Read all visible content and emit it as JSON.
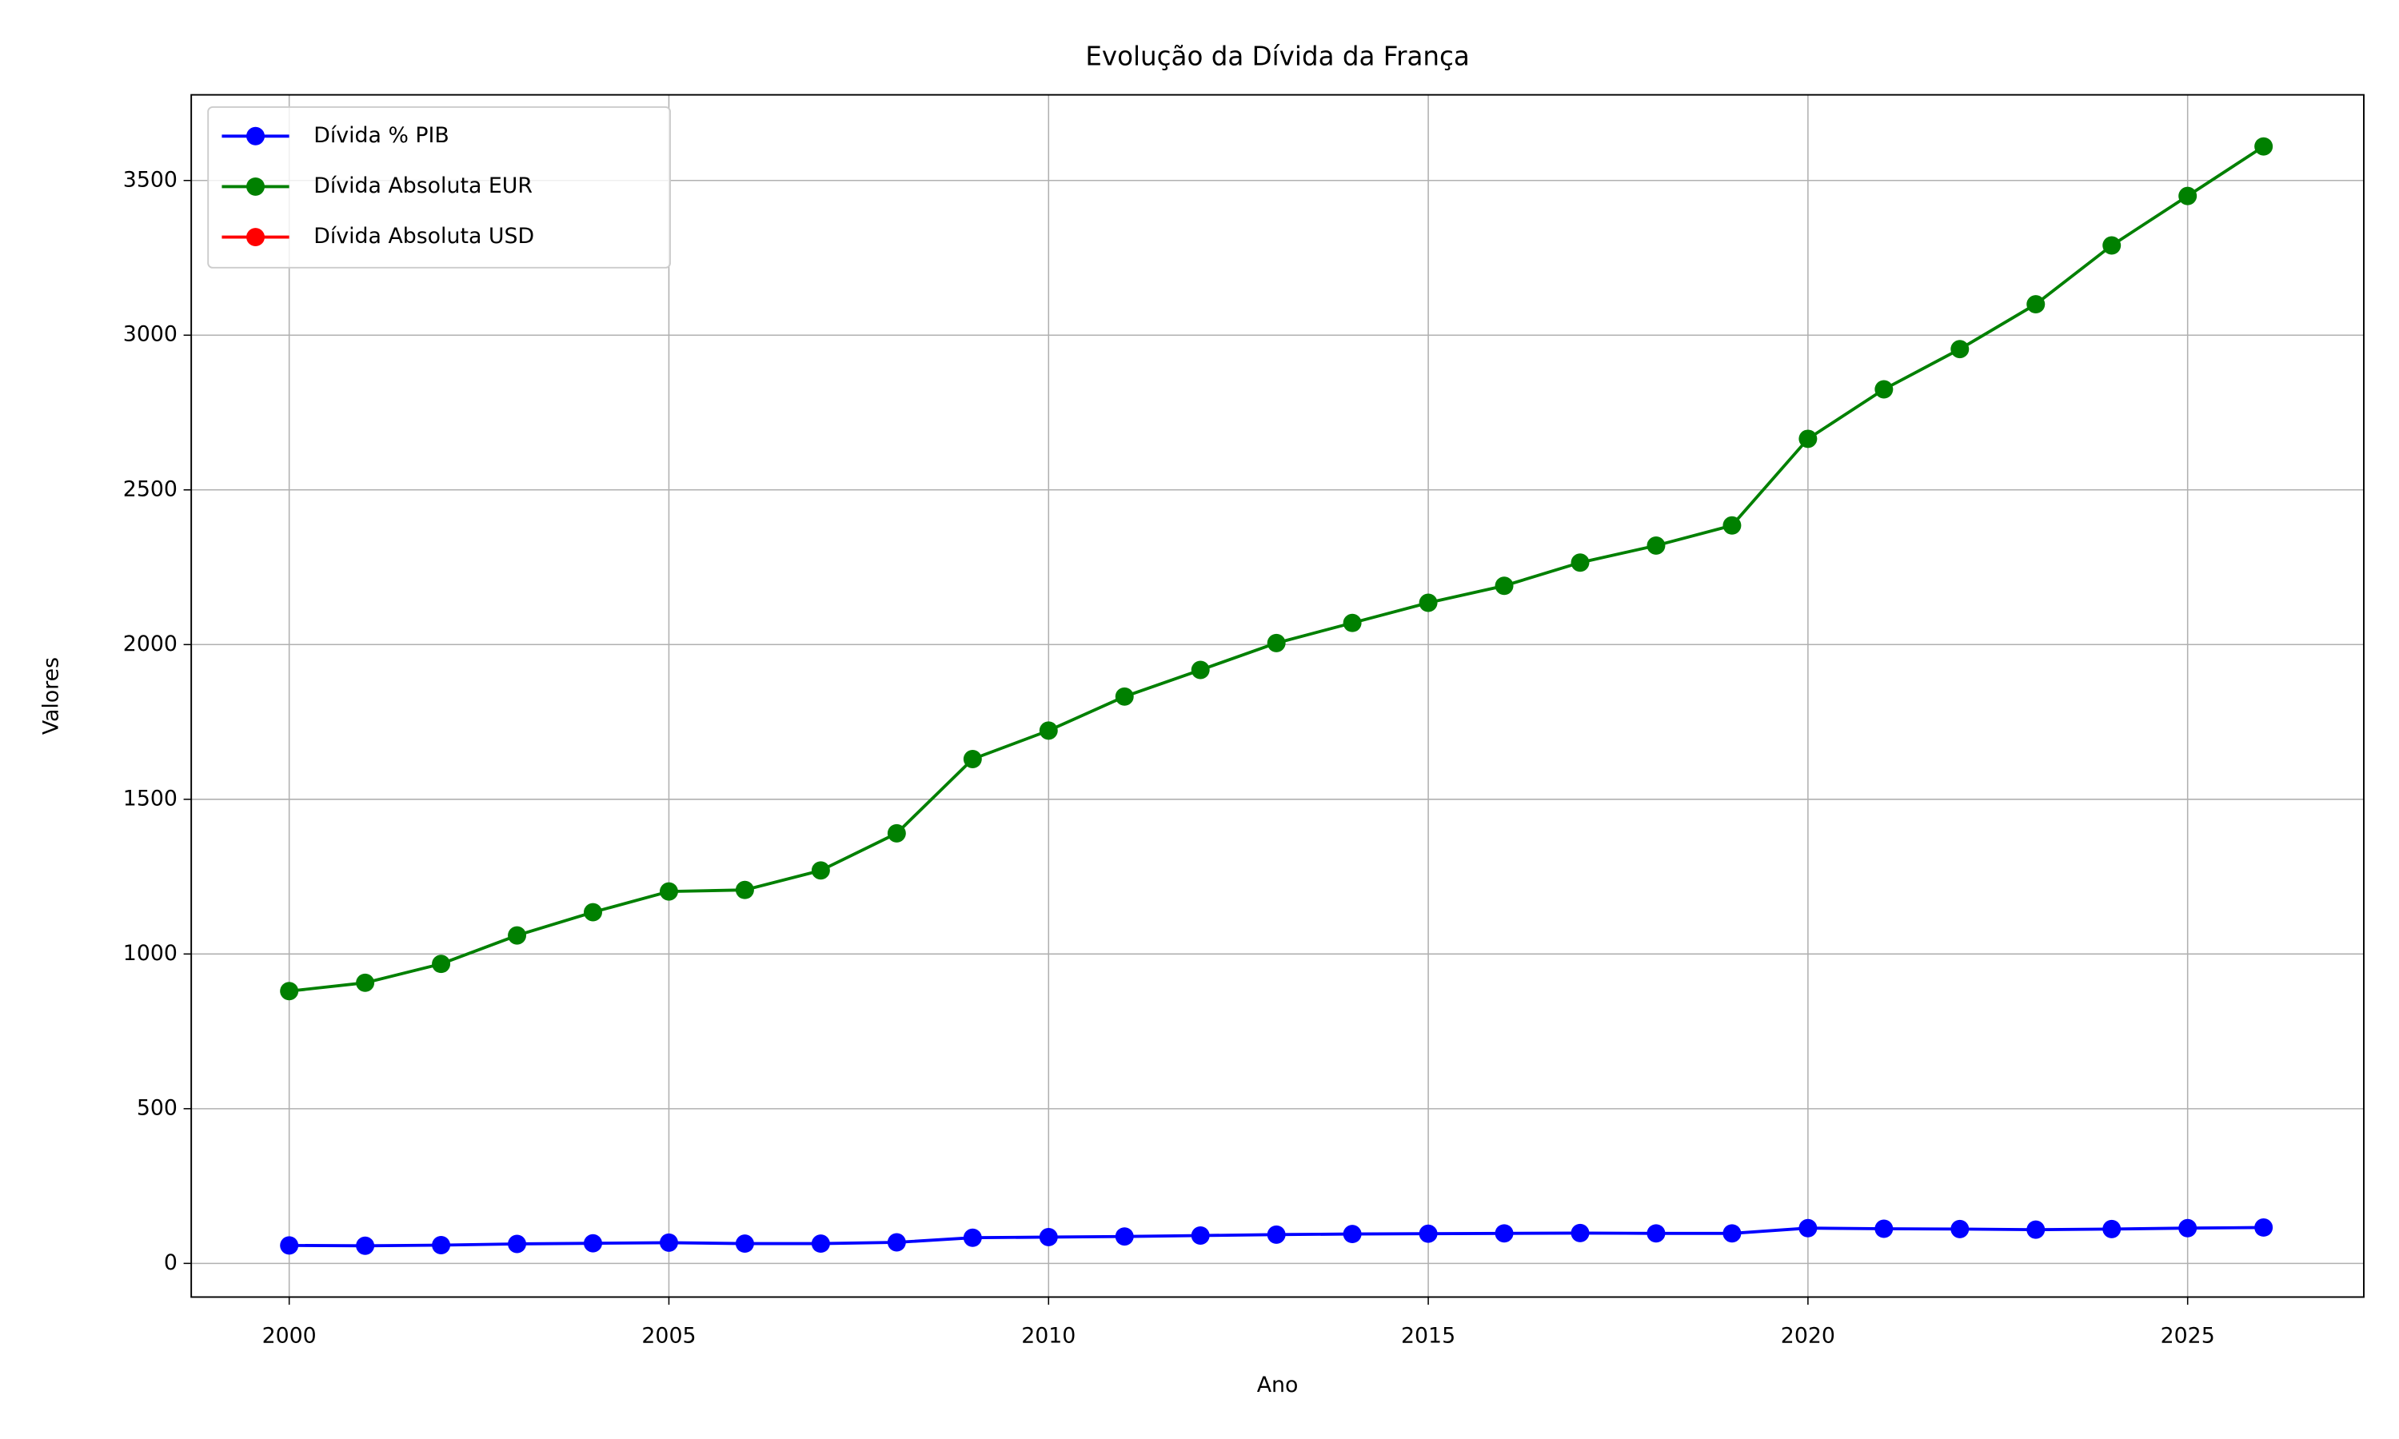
{
  "chart_data": {
    "type": "line",
    "title": "Evolução da Dívida da França",
    "xlabel": "Ano",
    "ylabel": "Valores",
    "x": [
      2000,
      2001,
      2002,
      2003,
      2004,
      2005,
      2006,
      2007,
      2008,
      2009,
      2010,
      2011,
      2012,
      2013,
      2014,
      2015,
      2016,
      2017,
      2018,
      2019,
      2020,
      2021,
      2022,
      2023,
      2024,
      2025,
      2026
    ],
    "series": [
      {
        "name": "Dívida % PIB",
        "color": "#0000ff",
        "values": [
          58,
          57,
          59,
          63,
          65,
          67,
          64,
          64,
          68,
          83,
          85,
          87,
          90,
          93,
          95,
          96,
          97,
          98,
          97,
          97,
          114,
          112,
          111,
          109,
          111,
          114,
          116
        ]
      },
      {
        "name": "Dívida Absoluta EUR",
        "color": "#008000",
        "values": [
          880,
          907,
          968,
          1060,
          1135,
          1202,
          1207,
          1270,
          1390,
          1630,
          1722,
          1832,
          1918,
          2005,
          2070,
          2135,
          2190,
          2265,
          2320,
          2385,
          2665,
          2825,
          2955,
          3100,
          3290,
          3450,
          3610
        ]
      },
      {
        "name": "Dívida Absoluta USD",
        "color": "#ff0000",
        "values": [
          null,
          null,
          null,
          null,
          null,
          null,
          null,
          null,
          null,
          null,
          null,
          null,
          null,
          null,
          null,
          null,
          null,
          null,
          null,
          null,
          null,
          null,
          null,
          null,
          null,
          null,
          null
        ]
      }
    ],
    "xlim": [
      1998.71,
      2027.32
    ],
    "xticks": [
      2000,
      2005,
      2010,
      2015,
      2020,
      2025
    ],
    "ylim": [
      -108.8,
      3776.8
    ],
    "yticks": [
      0,
      500,
      1000,
      1500,
      2000,
      2500,
      3000,
      3500
    ],
    "grid": true,
    "legend": "upper left"
  }
}
